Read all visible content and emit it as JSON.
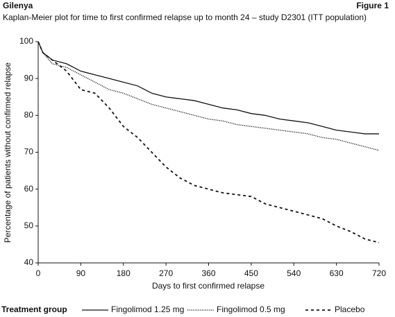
{
  "header": {
    "title": "Gilenya",
    "figure": "Figure 1"
  },
  "chart_data": {
    "type": "line",
    "title": "Kaplan-Meier plot for time to first confirmed relapse up to month 24 – study D2301 (ITT population)",
    "x_label": "Days to first confirmed relapse",
    "y_label": "Percentage of patients without confirmed relapse",
    "legend_title": "Treatment group",
    "x": [
      0,
      10,
      30,
      60,
      90,
      120,
      150,
      180,
      210,
      240,
      270,
      300,
      330,
      360,
      390,
      420,
      450,
      480,
      510,
      540,
      570,
      600,
      630,
      660,
      690,
      720
    ],
    "series": [
      {
        "name": "Fingolimod 1.25 mg",
        "color": "#111111",
        "line_style": "solid",
        "values": [
          100,
          97,
          95,
          94,
          92,
          91,
          90,
          89,
          88,
          86,
          85,
          84.5,
          84,
          83,
          82,
          81.5,
          80.5,
          80,
          79,
          78.5,
          78,
          77,
          76,
          75.5,
          75,
          75
        ]
      },
      {
        "name": "Fingolimod 0.5 mg",
        "color": "#111111",
        "line_style": "dotted",
        "values": [
          100,
          97,
          94,
          93,
          91,
          89,
          87,
          86,
          84.5,
          83,
          82,
          81,
          80,
          79,
          78.5,
          77.5,
          77,
          76.5,
          76,
          75.5,
          75,
          74,
          73.5,
          72.5,
          71.5,
          70.5
        ]
      },
      {
        "name": "Placebo",
        "color": "#111111",
        "line_style": "dashed",
        "values": [
          100,
          97,
          95,
          92,
          87,
          86,
          82,
          77,
          74,
          70,
          66,
          63,
          61,
          60,
          59,
          58.5,
          58,
          56,
          55,
          54,
          53,
          52,
          50,
          48.5,
          46.5,
          45.5
        ]
      }
    ],
    "xlim": [
      0,
      720
    ],
    "xticks": [
      0,
      90,
      180,
      270,
      360,
      450,
      540,
      630,
      720
    ],
    "ylim": [
      40,
      100
    ],
    "yticks": [
      40,
      50,
      60,
      70,
      80,
      90,
      100
    ]
  }
}
